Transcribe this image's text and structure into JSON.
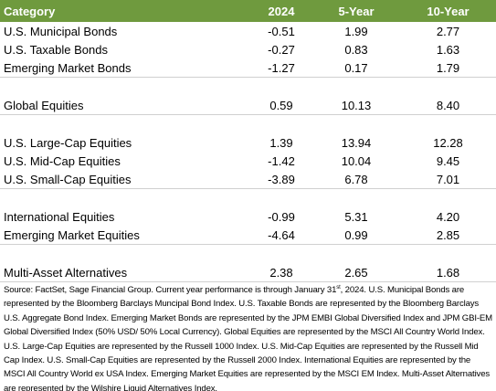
{
  "table": {
    "header": [
      "Category",
      "2024",
      "5-Year",
      "10-Year"
    ],
    "groups": [
      [
        [
          "U.S. Municipal Bonds",
          "-0.51",
          "1.99",
          "2.77"
        ],
        [
          "U.S. Taxable Bonds",
          "-0.27",
          "0.83",
          "1.63"
        ],
        [
          "Emerging Market Bonds",
          "-1.27",
          "0.17",
          "1.79"
        ]
      ],
      [
        [
          "Global Equities",
          "0.59",
          "10.13",
          "8.40"
        ]
      ],
      [
        [
          "U.S. Large-Cap Equities",
          "1.39",
          "13.94",
          "12.28"
        ],
        [
          "U.S. Mid-Cap Equities",
          "-1.42",
          "10.04",
          "9.45"
        ],
        [
          "U.S. Small-Cap Equities",
          "-3.89",
          "6.78",
          "7.01"
        ]
      ],
      [
        [
          "International Equities",
          "-0.99",
          "5.31",
          "4.20"
        ],
        [
          "Emerging Market Equities",
          "-4.64",
          "0.99",
          "2.85"
        ]
      ],
      [
        [
          "Multi-Asset Alternatives",
          "2.38",
          "2.65",
          "1.68"
        ]
      ]
    ]
  },
  "footnote": {
    "before": "Source: FactSet, Sage Financial Group. Current year performance is through January 31",
    "superscript": "st",
    "after": ", 2024. U.S. Municipal Bonds are represented by the Bloomberg Barclays Muncipal Bond Index. U.S. Taxable Bonds are represented by the Bloomberg Barclays U.S. Aggregate Bond Index. Emerging Market Bonds are represented by the JPM EMBI Global Diversified Index and JPM GBI-EM Global Diversified Index (50% USD/ 50% Local Currency). Global Equities are represented by the MSCI All Country World Index. U.S. Large-Cap Equities are represented by the Russell 1000 Index. U.S. Mid-Cap Equities are represented by the Russell Mid Cap Index. U.S. Small-Cap Equities are represented by the Russell 2000 Index. International Equities are represented by the MSCI All Country World ex USA Index. Emerging Market Equities are represented by the MSCI EM Index. Multi-Asset Alternatives are represented by the Wilshire Liquid Alternatives Index."
  }
}
